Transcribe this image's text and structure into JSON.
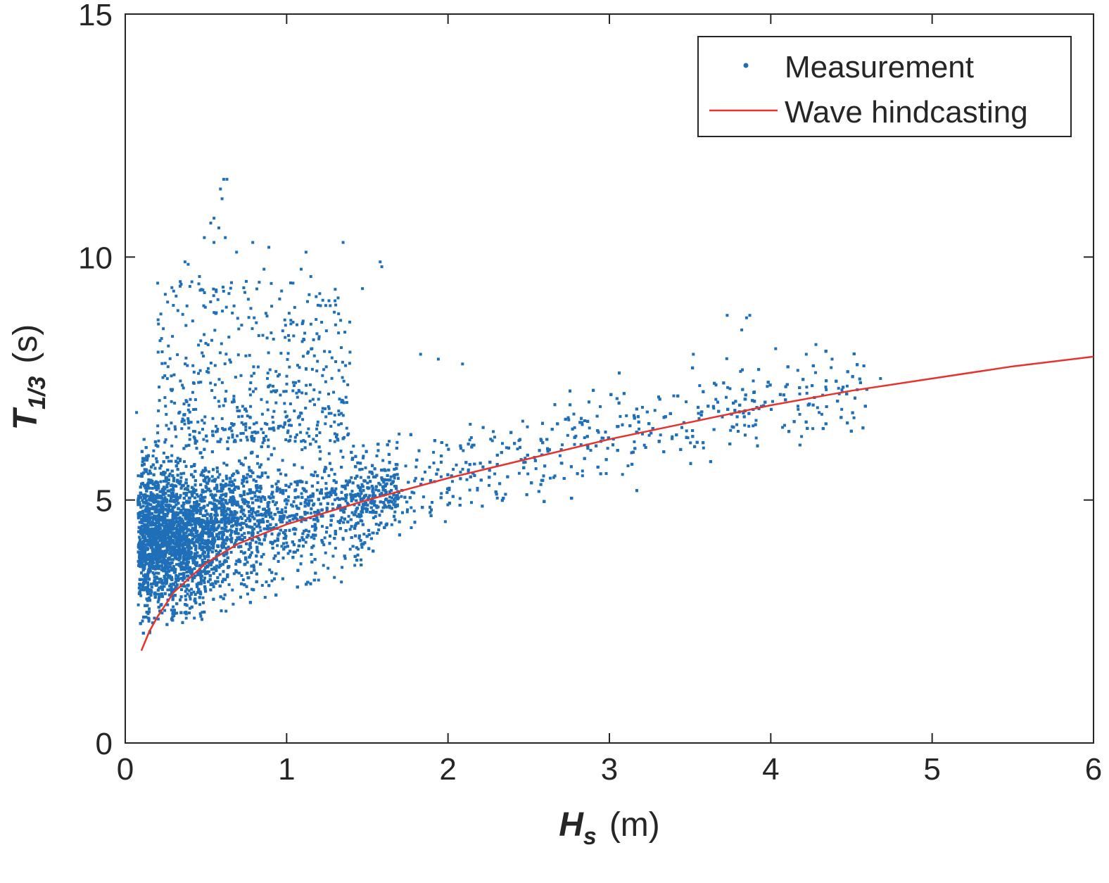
{
  "chart_data": {
    "type": "scatter",
    "xlim": [
      0,
      6
    ],
    "ylim": [
      0,
      15
    ],
    "xticks": [
      0,
      1,
      2,
      3,
      4,
      5,
      6
    ],
    "yticks": [
      0,
      5,
      10,
      15
    ],
    "xlabel": {
      "symbol": "H",
      "subscript": "s",
      "unit": "(m)"
    },
    "ylabel": {
      "symbol": "T",
      "subscript": "1/3",
      "unit": "(s)"
    },
    "legend": {
      "position": "top-right",
      "entries": [
        {
          "label": "Measurement",
          "marker": "dot",
          "color": "#1f6fb8"
        },
        {
          "label": "Wave hindcasting",
          "marker": "line",
          "color": "#e8322d"
        }
      ]
    },
    "series": [
      {
        "name": "Measurement",
        "kind": "scatter",
        "color": "#1f6fb8",
        "description_points": "dense cloud; approximate envelope",
        "core": {
          "hs_range": [
            0.08,
            4.7
          ],
          "t_mean_at": [
            [
              0.1,
              4.3
            ],
            [
              0.3,
              4.2
            ],
            [
              0.6,
              4.4
            ],
            [
              1.0,
              4.6
            ],
            [
              1.5,
              5.0
            ],
            [
              2.0,
              5.5
            ],
            [
              2.5,
              5.9
            ],
            [
              3.0,
              6.3
            ],
            [
              3.5,
              6.7
            ],
            [
              4.0,
              7.0
            ],
            [
              4.5,
              7.2
            ]
          ]
        },
        "outliers": [
          [
            0.61,
            11.6
          ],
          [
            0.63,
            11.6
          ],
          [
            0.59,
            11.4
          ],
          [
            0.6,
            11.2
          ],
          [
            0.55,
            10.8
          ],
          [
            0.53,
            10.7
          ],
          [
            0.58,
            10.6
          ],
          [
            0.62,
            10.4
          ],
          [
            0.49,
            10.4
          ],
          [
            0.55,
            10.3
          ],
          [
            0.37,
            9.9
          ],
          [
            0.39,
            9.85
          ],
          [
            0.69,
            10.1
          ],
          [
            0.79,
            10.3
          ],
          [
            0.89,
            10.2
          ],
          [
            1.12,
            10.1
          ],
          [
            1.35,
            10.3
          ],
          [
            1.58,
            9.9
          ],
          [
            1.59,
            9.8
          ],
          [
            1.47,
            9.35
          ],
          [
            1.3,
            9.1
          ],
          [
            1.27,
            9.0
          ],
          [
            1.21,
            9.0
          ],
          [
            1.15,
            9.6
          ],
          [
            1.09,
            9.75
          ],
          [
            0.86,
            9.75
          ],
          [
            0.75,
            9.5
          ],
          [
            0.46,
            9.6
          ],
          [
            0.34,
            9.4
          ],
          [
            0.3,
            9.3
          ],
          [
            3.87,
            8.8
          ],
          [
            3.85,
            8.75
          ],
          [
            3.73,
            8.8
          ],
          [
            3.82,
            8.5
          ],
          [
            4.28,
            8.2
          ],
          [
            4.22,
            8.0
          ],
          [
            4.38,
            7.9
          ],
          [
            3.52,
            8.0
          ],
          [
            4.68,
            7.5
          ],
          [
            4.42,
            7.3
          ],
          [
            4.3,
            6.8
          ],
          [
            4.29,
            6.9
          ],
          [
            1.83,
            8.0
          ],
          [
            1.94,
            7.9
          ],
          [
            2.09,
            7.8
          ],
          [
            0.07,
            6.8
          ],
          [
            0.08,
            5.0
          ]
        ]
      },
      {
        "name": "Wave hindcasting",
        "kind": "line",
        "color": "#e8322d",
        "x": [
          0.1,
          0.15,
          0.2,
          0.3,
          0.4,
          0.5,
          0.7,
          1.0,
          1.5,
          2.0,
          2.5,
          3.0,
          3.5,
          4.0,
          4.5,
          5.0,
          5.5,
          6.0
        ],
        "y": [
          1.9,
          2.3,
          2.6,
          3.1,
          3.4,
          3.7,
          4.1,
          4.5,
          5.0,
          5.45,
          5.85,
          6.25,
          6.6,
          6.95,
          7.25,
          7.5,
          7.75,
          7.95
        ]
      }
    ]
  }
}
